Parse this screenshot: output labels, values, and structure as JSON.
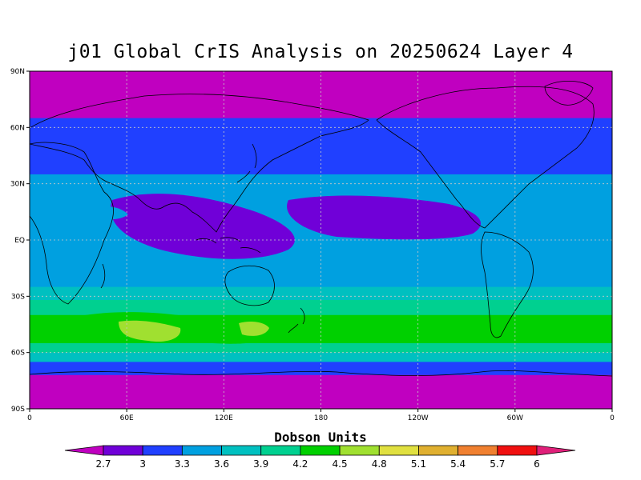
{
  "title": "j01 Global CrIS Analysis on 20250624 Layer 4",
  "map": {
    "lat_labels": [
      "90N",
      "60N",
      "30N",
      "EQ",
      "30S",
      "60S",
      "90S"
    ],
    "lon_labels": [
      "0",
      "60E",
      "120E",
      "180",
      "120W",
      "60W",
      "0"
    ],
    "projection": "cylindrical-equidistant",
    "central_longitude": 180,
    "grid": "dotted",
    "contour_bands_by_latitude": [
      {
        "lat_from": 90,
        "lat_to": 65,
        "value": 2.7
      },
      {
        "lat_from": 65,
        "lat_to": 35,
        "value": 3.0
      },
      {
        "lat_from": 35,
        "lat_to": 30,
        "value": 3.3
      },
      {
        "lat_from": 30,
        "lat_to": -25,
        "value": 3.3
      },
      {
        "lat_from": -25,
        "lat_to": -32,
        "value": 3.6
      },
      {
        "lat_from": -32,
        "lat_to": -40,
        "value": 3.9
      },
      {
        "lat_from": -40,
        "lat_to": -55,
        "value": 4.2
      },
      {
        "lat_from": -55,
        "lat_to": -60,
        "value": 3.9
      },
      {
        "lat_from": -60,
        "lat_to": -65,
        "value": 3.6
      },
      {
        "lat_from": -65,
        "lat_to": -72,
        "value": 3.0
      },
      {
        "lat_from": -72,
        "lat_to": -90,
        "value": 2.7
      }
    ]
  },
  "colorbar": {
    "title": "Dobson Units",
    "tick_labels": [
      "2.7",
      "3",
      "3.3",
      "3.6",
      "3.9",
      "4.2",
      "4.5",
      "4.8",
      "5.1",
      "5.4",
      "5.7",
      "6"
    ],
    "under_color": "#c000c0",
    "over_color": "#e0207a",
    "bin_colors": [
      "#7000d8",
      "#2040ff",
      "#00a0e0",
      "#00c0c0",
      "#00d090",
      "#00d000",
      "#a0e030",
      "#e0e040",
      "#e0b030",
      "#f08030",
      "#f01010"
    ]
  }
}
